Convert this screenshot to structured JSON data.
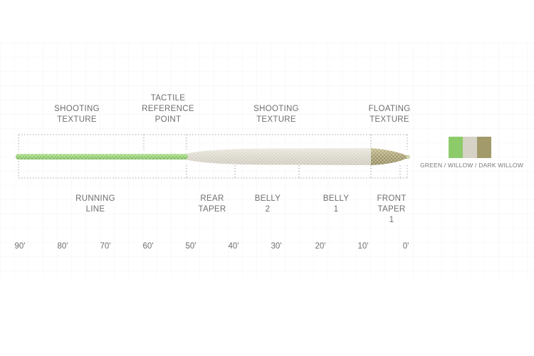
{
  "top_labels": [
    {
      "lines": [
        "SHOOTING",
        "TEXTURE"
      ]
    },
    {
      "lines": [
        "TACTILE",
        "REFERENCE",
        "POINT"
      ]
    },
    {
      "lines": [
        "SHOOTING",
        "TEXTURE"
      ]
    },
    {
      "lines": [
        "FLOATING",
        "TEXTURE"
      ]
    }
  ],
  "bottom_labels": [
    {
      "lines": [
        "RUNNING",
        "LINE"
      ]
    },
    {
      "lines": [
        "REAR",
        "TAPER"
      ]
    },
    {
      "lines": [
        "BELLY",
        "2"
      ]
    },
    {
      "lines": [
        "BELLY",
        "1"
      ]
    },
    {
      "lines": [
        "FRONT",
        "TAPER",
        "1"
      ]
    }
  ],
  "axis_ticks": [
    "90'",
    "80'",
    "70'",
    "60'",
    "50'",
    "40'",
    "30'",
    "20'",
    "10'",
    "0'"
  ],
  "colors": {
    "green": "#8dcb6a",
    "willow": "#d6d2c6",
    "dark_willow": "#a39a6c",
    "line": "#a8a8a8",
    "grid": "#f3f3f3"
  },
  "legend": {
    "label": "GREEN / WILLOW / DARK WILLOW"
  }
}
